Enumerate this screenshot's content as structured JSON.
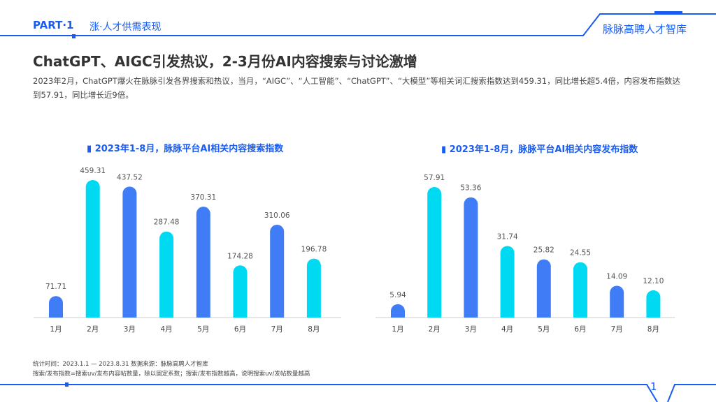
{
  "header": {
    "part": "PART·1",
    "section": "涨·人才供需表现",
    "brand": "脉脉高聘人才智库"
  },
  "title": "ChatGPT、AIGC引发热议，2-3月份AI内容搜索与讨论激增",
  "description": "2023年2月，ChatGPT爆火在脉脉引发各界搜索和热议，当月，“AIGC”、“人工智能”、“ChatGPT”、“大模型”等相关词汇搜索指数达到459.31，同比增长超5.4倍，内容发布指数达到57.91，同比增长近9倍。",
  "footer": {
    "line1": "统计时间：2023.1.1 — 2023.8.31  数据来源：脉脉高聘人才智库",
    "line2": "搜索/发布指数=搜索uv/发布内容帖数量，除以固定系数；搜索/发布指数越高，说明搜索uv/发帖数量越高",
    "page": "1"
  },
  "colors": {
    "accent": "#1a5cf0",
    "bar_blue": "#3f7cf6",
    "bar_cyan": "#00d9f2"
  },
  "chart_data": [
    {
      "type": "bar",
      "title": "2023年1-8月，脉脉平台AI相关内容搜索指数",
      "categories": [
        "1月",
        "2月",
        "3月",
        "4月",
        "5月",
        "6月",
        "7月",
        "8月"
      ],
      "values": [
        71.71,
        459.31,
        437.52,
        287.48,
        370.31,
        174.28,
        310.06,
        196.78
      ],
      "labels": [
        "71.71",
        "459.31",
        "437.52",
        "287.48",
        "370.31",
        "174.28",
        "310.06",
        "196.78"
      ],
      "ylim": [
        0,
        459.31
      ],
      "grid": false
    },
    {
      "type": "bar",
      "title": "2023年1-8月，脉脉平台AI相关内容发布指数",
      "categories": [
        "1月",
        "2月",
        "3月",
        "4月",
        "5月",
        "6月",
        "7月",
        "8月"
      ],
      "values": [
        5.94,
        57.91,
        53.36,
        31.74,
        25.82,
        24.55,
        14.09,
        12.1
      ],
      "labels": [
        "5.94",
        "57.91",
        "53.36",
        "31.74",
        "25.82",
        "24.55",
        "14.09",
        "12.10"
      ],
      "ylim": [
        0,
        57.91
      ],
      "grid": false
    }
  ]
}
